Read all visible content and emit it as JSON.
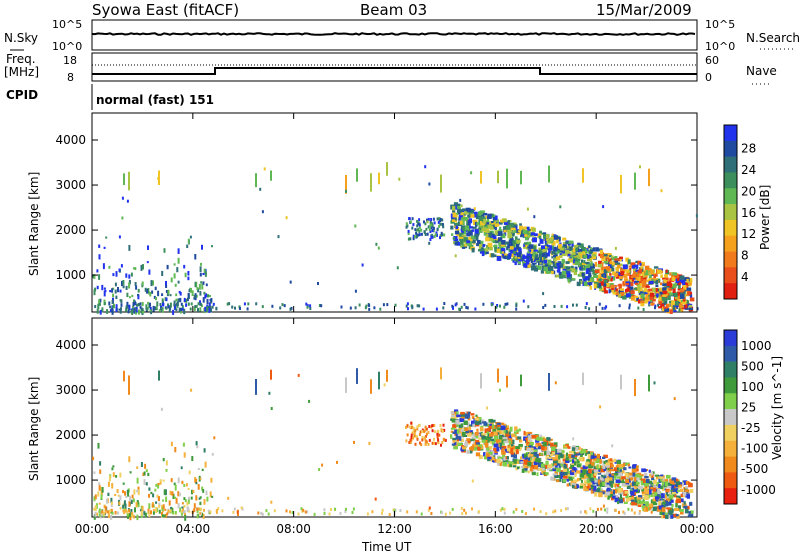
{
  "header": {
    "title": "Syowa East (fitACF)",
    "beam": "Beam 03",
    "date": "15/Mar/2009"
  },
  "noise_panel": {
    "left_label": "N.Sky",
    "right_label": "N.Search",
    "left_ticks": [
      "10^5",
      "10^0"
    ],
    "right_ticks": [
      "10^5",
      "10^0"
    ]
  },
  "freq_panel": {
    "left_label_1": "Freq.",
    "left_label_2": "[MHz]",
    "right_label": "Nave",
    "left_ticks": [
      "18",
      "8"
    ],
    "right_ticks": [
      "60",
      "0"
    ]
  },
  "cpid": {
    "label": "CPID",
    "value": "normal (fast) 151"
  },
  "chart_data": [
    {
      "type": "heatmap",
      "quantity": "Power",
      "xlabel": "",
      "ylabel": "Slant Range [km]",
      "x_ticks": [
        "00:00",
        "04:00",
        "08:00",
        "12:00",
        "16:00",
        "20:00",
        "00:00"
      ],
      "y_ticks": [
        "1000",
        "2000",
        "3000",
        "4000"
      ],
      "ylim": [
        180,
        4600
      ],
      "colorbar": {
        "label": "Power [dB]",
        "ticks": [
          "4",
          "8",
          "12",
          "16",
          "20",
          "24",
          "28"
        ],
        "colors": [
          "#2233ee",
          "#1f4aa0",
          "#2f6f78",
          "#3c8f5c",
          "#5fb854",
          "#a8c442",
          "#f0c425",
          "#f5a11d",
          "#f17a1c",
          "#ea4e1a",
          "#e02010"
        ]
      }
    },
    {
      "type": "heatmap",
      "quantity": "Velocity",
      "xlabel": "Time UT",
      "ylabel": "Slant Range [km]",
      "x_ticks": [
        "00:00",
        "04:00",
        "08:00",
        "12:00",
        "16:00",
        "20:00",
        "00:00"
      ],
      "y_ticks": [
        "1000",
        "2000",
        "3000",
        "4000"
      ],
      "ylim": [
        180,
        4600
      ],
      "colorbar": {
        "label": "Velocity [m s^-1]",
        "ticks": [
          "1000",
          "500",
          "100",
          "25",
          "-25",
          "-100",
          "-500",
          "-1000"
        ],
        "colors": [
          "#2b3bd8",
          "#2e5aa8",
          "#2f7e66",
          "#3e9a3b",
          "#7fcf4a",
          "#c8c8c8",
          "#f0d060",
          "#f4b03a",
          "#f08a1c",
          "#ef5a12",
          "#e82010"
        ]
      }
    }
  ]
}
